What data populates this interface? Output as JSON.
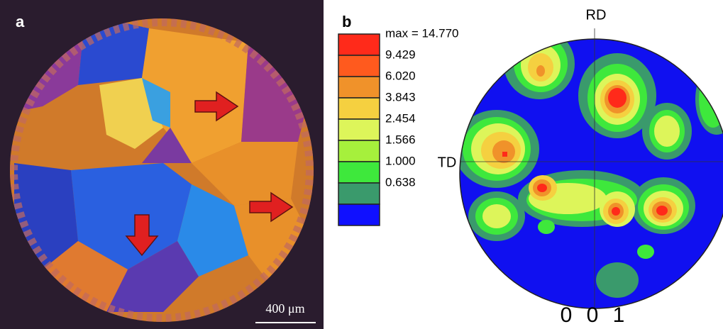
{
  "panel_a": {
    "label": "a",
    "scale_bar": "400 μm"
  },
  "panel_b": {
    "label": "b",
    "legend": [
      "max = 14.770",
      "9.429",
      "6.020",
      "3.843",
      "2.454",
      "1.566",
      "1.000",
      "0.638"
    ],
    "axis_top": "RD",
    "axis_left": "TD",
    "plane": "0 0 1"
  }
}
